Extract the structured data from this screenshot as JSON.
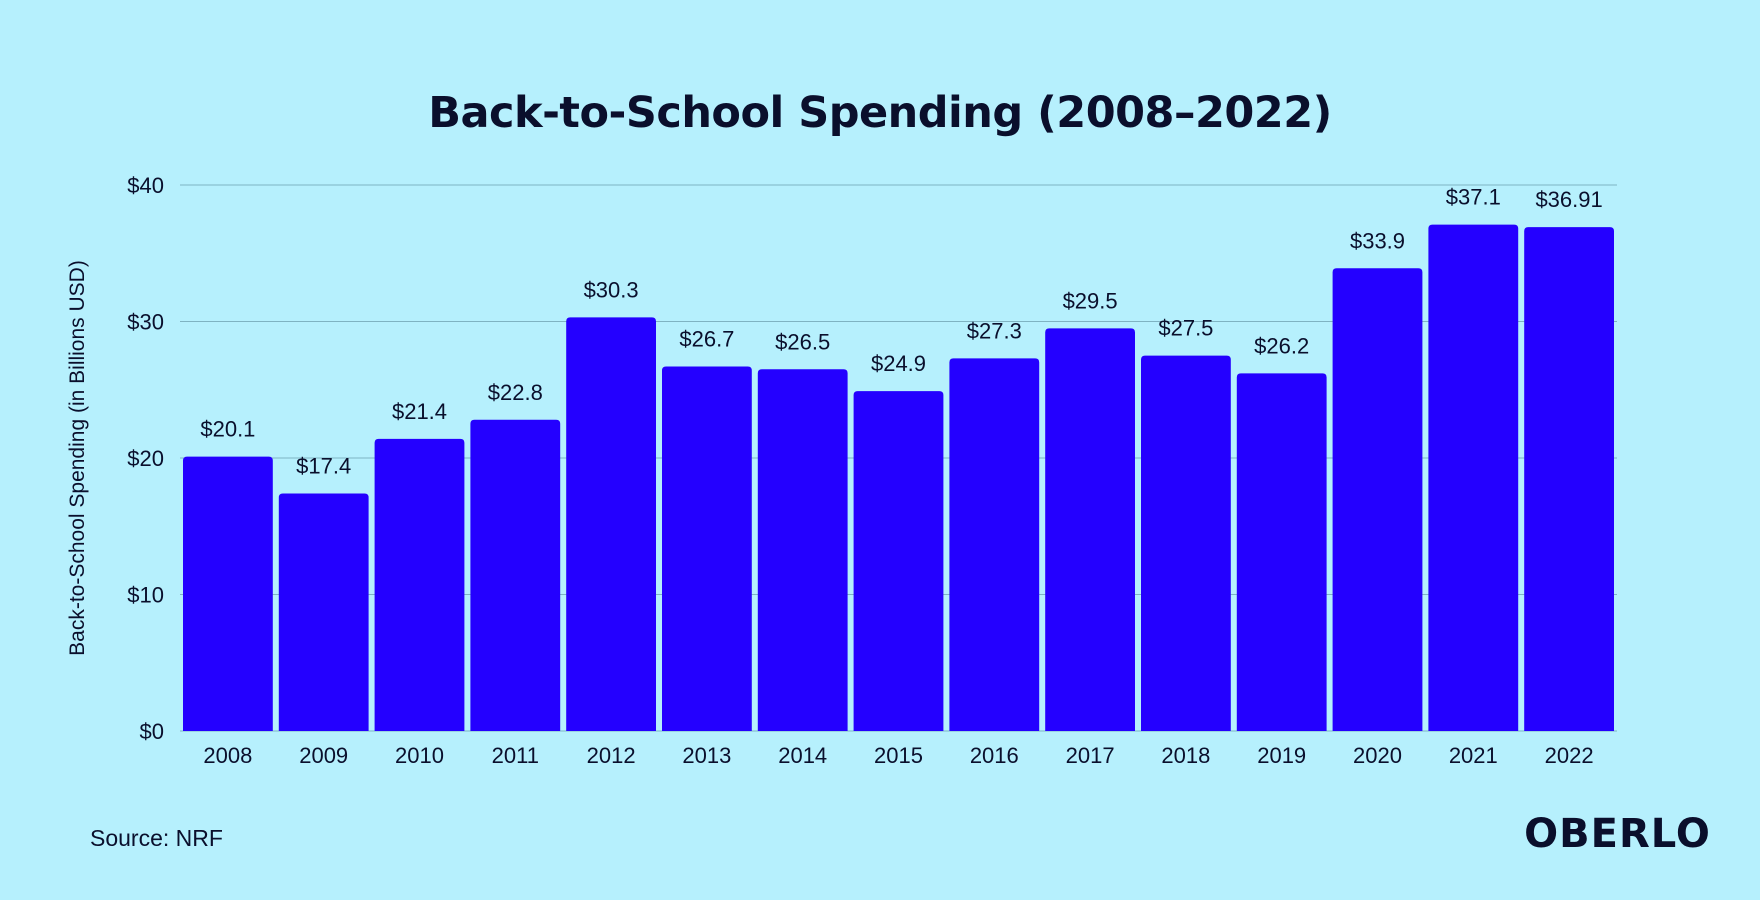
{
  "chart_data": {
    "type": "bar",
    "title": "Back-to-School Spending (2008–2022)",
    "xlabel": "",
    "ylabel": "Back-to-School Spending (in Billions USD)",
    "ylim": [
      0,
      40
    ],
    "yticks": [
      0,
      10,
      20,
      30,
      40
    ],
    "ytick_labels": [
      "$0",
      "$10",
      "$20",
      "$30",
      "$40"
    ],
    "grid": true,
    "categories": [
      "2008",
      "2009",
      "2010",
      "2011",
      "2012",
      "2013",
      "2014",
      "2015",
      "2016",
      "2017",
      "2018",
      "2019",
      "2020",
      "2021",
      "2022"
    ],
    "values": [
      20.1,
      17.4,
      21.4,
      22.8,
      30.3,
      26.7,
      26.5,
      24.9,
      27.3,
      29.5,
      27.5,
      26.2,
      33.9,
      37.1,
      36.91
    ],
    "data_labels": [
      "$20.1",
      "$17.4",
      "$21.4",
      "$22.8",
      "$30.3",
      "$26.7",
      "$26.5",
      "$24.9",
      "$27.3",
      "$29.5",
      "$27.5",
      "$26.2",
      "$33.9",
      "$37.1",
      "$36.91"
    ],
    "bar_color": "#2400ff"
  },
  "footer": {
    "source": "Source: NRF",
    "logo": "OBERLO"
  },
  "colors": {
    "background": "#b6f0fd",
    "text": "#0a0f2c"
  }
}
